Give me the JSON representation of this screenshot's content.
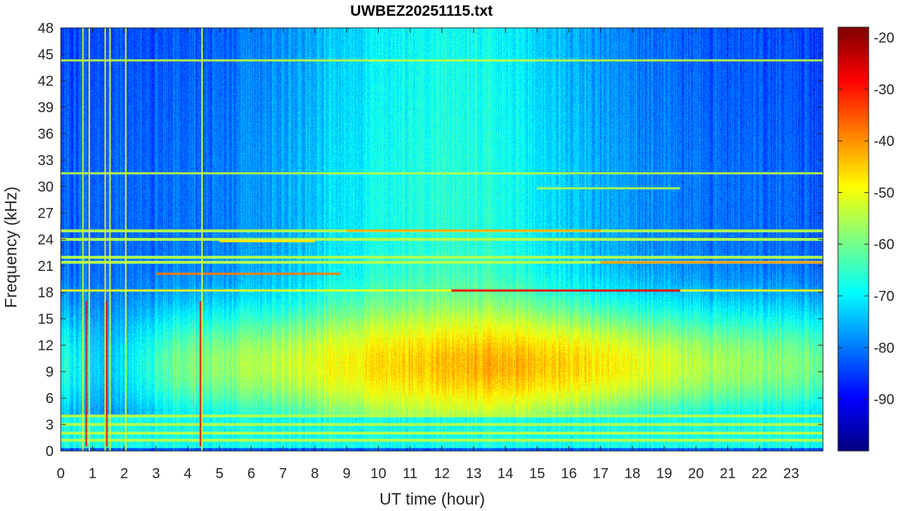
{
  "chart_data": {
    "type": "heatmap",
    "title": "UWBEZ20251115.txt",
    "xlabel": "UT time (hour)",
    "ylabel": "Frequency (kHz)",
    "x_range": [
      0,
      24
    ],
    "y_range": [
      0,
      48
    ],
    "x_ticks": [
      0,
      1,
      2,
      3,
      4,
      5,
      6,
      7,
      8,
      9,
      10,
      11,
      12,
      13,
      14,
      15,
      16,
      17,
      18,
      19,
      20,
      21,
      22,
      23
    ],
    "y_ticks": [
      0,
      3,
      6,
      9,
      12,
      15,
      18,
      21,
      24,
      27,
      30,
      33,
      36,
      39,
      42,
      45,
      48
    ],
    "colorbar": {
      "colormap": "jet",
      "range": [
        -100,
        -18
      ],
      "ticks": [
        -20,
        -30,
        -40,
        -50,
        -60,
        -70,
        -80,
        -90
      ],
      "unit": "dB"
    },
    "features": {
      "noise_band": {
        "freq_low_khz": 4.5,
        "freq_high_khz": 15,
        "peak_level": -43
      },
      "low_level_upper_band_night": -82,
      "low_level_upper_band_day": -66,
      "persistent_lines_khz": [
        1.2,
        2.0,
        3.0,
        4.0,
        18.2,
        21.4,
        22.0,
        24.0,
        25.0,
        31.5,
        44.3
      ],
      "transmitter_segments": [
        {
          "freq_khz": 18.2,
          "start_hour": 12.3,
          "end_hour": 19.5,
          "level": -28
        },
        {
          "freq_khz": 20.1,
          "start_hour": 3.0,
          "end_hour": 8.8,
          "level": -38
        },
        {
          "freq_khz": 21.4,
          "start_hour": 17.0,
          "end_hour": 24.0,
          "level": -40
        },
        {
          "freq_khz": 23.8,
          "start_hour": 5.0,
          "end_hour": 8.0,
          "level": -47
        },
        {
          "freq_khz": 25.0,
          "start_hour": 9.0,
          "end_hour": 17.0,
          "level": -42
        },
        {
          "freq_khz": 29.8,
          "start_hour": 15.0,
          "end_hour": 19.5,
          "level": -56
        }
      ],
      "impulsive_events_hour": [
        0.8,
        1.45,
        4.4
      ],
      "vertical_lines_hour": [
        0.7,
        0.9,
        1.4,
        1.55,
        2.05,
        4.45
      ]
    }
  }
}
